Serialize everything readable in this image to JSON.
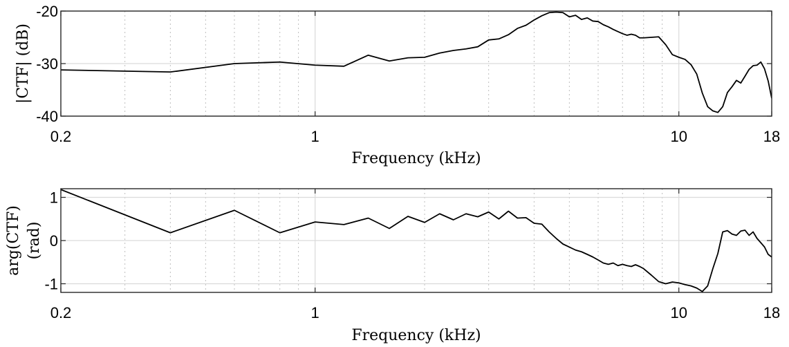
{
  "chart_data": [
    {
      "type": "line",
      "xlabel": "Frequency (kHz)",
      "ylabel": "|CTF| (dB)",
      "xscale": "log",
      "xlim": [
        0.2,
        18
      ],
      "ylim": [
        -40,
        -20
      ],
      "xticks": [
        0.2,
        1,
        10,
        18
      ],
      "xtick_labels": [
        "0.2",
        "1",
        "10",
        "18"
      ],
      "yticks": [
        -40,
        -30,
        -20
      ],
      "ytick_labels": [
        "-40",
        "-30",
        "-20"
      ],
      "grid": true,
      "line_color": "#000000",
      "series": [
        {
          "x": [
            0.2,
            0.4,
            0.6,
            0.8,
            1.0,
            1.2,
            1.4,
            1.6,
            1.8,
            2.0,
            2.2,
            2.4,
            2.6,
            2.8,
            3.0,
            3.2,
            3.4,
            3.6,
            3.8,
            4.0,
            4.2,
            4.4,
            4.6,
            4.8,
            5.0,
            5.2,
            5.4,
            5.6,
            5.8,
            6.0,
            6.2,
            6.4,
            6.6,
            6.8,
            7.0,
            7.2,
            7.4,
            7.6,
            7.8,
            8.0,
            8.4,
            8.8,
            9.2,
            9.6,
            10.0,
            10.4,
            10.8,
            11.2,
            11.6,
            12.0,
            12.4,
            12.8,
            13.2,
            13.6,
            14.0,
            14.4,
            14.8,
            15.2,
            15.6,
            16.0,
            16.4,
            16.8,
            17.2,
            17.6,
            18.0
          ],
          "y": [
            -31.2,
            -31.6,
            -30.0,
            -29.7,
            -30.3,
            -30.5,
            -28.4,
            -29.5,
            -28.9,
            -28.8,
            -28.0,
            -27.5,
            -27.2,
            -26.8,
            -25.5,
            -25.3,
            -24.5,
            -23.3,
            -22.7,
            -21.7,
            -20.9,
            -20.3,
            -20.2,
            -20.3,
            -21.1,
            -20.8,
            -21.6,
            -21.3,
            -21.9,
            -22.0,
            -22.6,
            -23.0,
            -23.5,
            -23.9,
            -24.3,
            -24.6,
            -24.4,
            -24.6,
            -25.1,
            -25.1,
            -25.0,
            -24.9,
            -26.4,
            -28.3,
            -28.8,
            -29.2,
            -30.2,
            -32.0,
            -35.6,
            -38.2,
            -39.0,
            -39.3,
            -38.2,
            -35.5,
            -34.4,
            -33.2,
            -33.7,
            -32.4,
            -31.1,
            -30.4,
            -30.3,
            -29.7,
            -31.0,
            -33.3,
            -36.6
          ]
        }
      ]
    },
    {
      "type": "line",
      "xlabel": "Frequency (kHz)",
      "ylabel": [
        "arg(CTF)",
        "(rad)"
      ],
      "xscale": "log",
      "xlim": [
        0.2,
        18
      ],
      "ylim": [
        -1.2,
        1.2
      ],
      "xticks": [
        0.2,
        1,
        10,
        18
      ],
      "xtick_labels": [
        "0.2",
        "1",
        "10",
        "18"
      ],
      "yticks": [
        -1,
        0,
        1
      ],
      "ytick_labels": [
        "-1",
        "0",
        "1"
      ],
      "grid": true,
      "line_color": "#000000",
      "series": [
        {
          "x": [
            0.2,
            0.4,
            0.6,
            0.8,
            1.0,
            1.2,
            1.4,
            1.6,
            1.8,
            2.0,
            2.2,
            2.4,
            2.6,
            2.8,
            3.0,
            3.2,
            3.4,
            3.6,
            3.8,
            4.0,
            4.2,
            4.4,
            4.6,
            4.8,
            5.0,
            5.2,
            5.4,
            5.6,
            5.8,
            6.0,
            6.2,
            6.4,
            6.6,
            6.8,
            7.0,
            7.2,
            7.4,
            7.6,
            7.8,
            8.0,
            8.4,
            8.8,
            9.2,
            9.6,
            10.0,
            10.4,
            10.8,
            11.2,
            11.6,
            12.0,
            12.4,
            12.8,
            13.2,
            13.6,
            14.0,
            14.4,
            14.8,
            15.2,
            15.6,
            16.0,
            16.4,
            16.8,
            17.2,
            17.6,
            18.0
          ],
          "y": [
            1.18,
            0.18,
            0.7,
            0.18,
            0.43,
            0.37,
            0.52,
            0.28,
            0.56,
            0.42,
            0.62,
            0.48,
            0.62,
            0.55,
            0.66,
            0.5,
            0.68,
            0.52,
            0.53,
            0.4,
            0.38,
            0.2,
            0.05,
            -0.08,
            -0.15,
            -0.22,
            -0.26,
            -0.32,
            -0.38,
            -0.45,
            -0.52,
            -0.55,
            -0.52,
            -0.58,
            -0.55,
            -0.58,
            -0.6,
            -0.56,
            -0.6,
            -0.65,
            -0.8,
            -0.95,
            -1.0,
            -0.96,
            -0.98,
            -1.02,
            -1.05,
            -1.1,
            -1.18,
            -1.05,
            -0.65,
            -0.3,
            0.2,
            0.23,
            0.15,
            0.12,
            0.22,
            0.24,
            0.12,
            0.2,
            0.05,
            -0.05,
            -0.15,
            -0.32,
            -0.38
          ]
        }
      ]
    }
  ]
}
